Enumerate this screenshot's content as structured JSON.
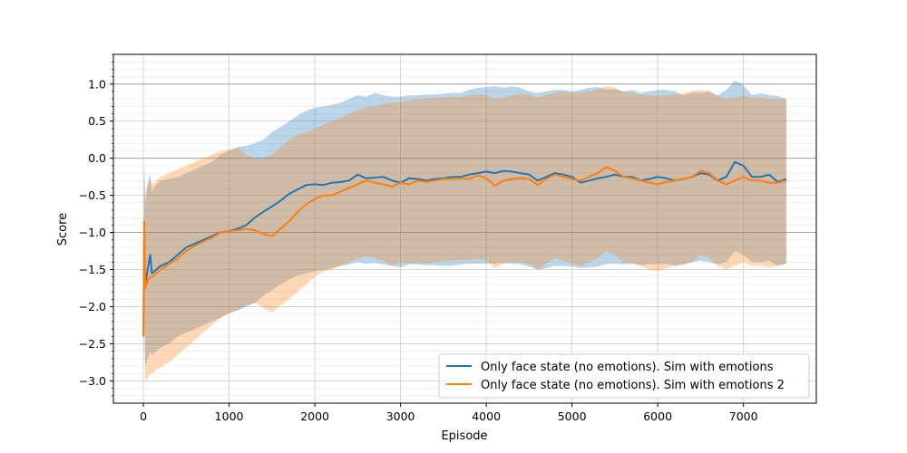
{
  "chart_data": {
    "type": "line",
    "title": "",
    "xlabel": "Episode",
    "ylabel": "Score",
    "xlim": [
      -350,
      7850
    ],
    "ylim": [
      -3.3,
      1.4
    ],
    "xticks": [
      0,
      1000,
      2000,
      3000,
      4000,
      5000,
      6000,
      7000
    ],
    "xtick_labels": [
      "0",
      "1000",
      "2000",
      "3000",
      "4000",
      "5000",
      "6000",
      "7000"
    ],
    "yticks": [
      -3.0,
      -2.5,
      -2.0,
      -1.5,
      -1.0,
      -0.5,
      0.0,
      0.5,
      1.0
    ],
    "ytick_labels": [
      "−3.0",
      "−2.5",
      "−2.0",
      "−1.5",
      "−1.0",
      "−0.5",
      "0.0",
      "0.5",
      "1.0"
    ],
    "grid": {
      "major": true,
      "minor_y_step": 0.1,
      "reference_lines_y": [
        -1.0,
        0.0,
        1.0
      ]
    },
    "legend_position": "lower-right",
    "x": [
      0,
      10,
      20,
      50,
      80,
      100,
      150,
      200,
      300,
      400,
      500,
      600,
      700,
      800,
      900,
      1000,
      1100,
      1200,
      1300,
      1400,
      1500,
      1600,
      1700,
      1800,
      1900,
      2000,
      2100,
      2200,
      2300,
      2400,
      2500,
      2600,
      2700,
      2800,
      2900,
      3000,
      3100,
      3200,
      3300,
      3400,
      3500,
      3600,
      3700,
      3800,
      3900,
      4000,
      4100,
      4200,
      4300,
      4400,
      4500,
      4600,
      4700,
      4800,
      4900,
      5000,
      5100,
      5200,
      5300,
      5400,
      5500,
      5600,
      5700,
      5800,
      5900,
      6000,
      6100,
      6200,
      6300,
      6400,
      6500,
      6600,
      6700,
      6800,
      6900,
      7000,
      7100,
      7200,
      7300,
      7400,
      7500
    ],
    "series": [
      {
        "name": "Only face state (no emotions). Sim with emotions",
        "color": "#1f77b4",
        "mean": [
          -2.4,
          -1.0,
          -1.7,
          -1.5,
          -1.3,
          -1.55,
          -1.5,
          -1.45,
          -1.4,
          -1.3,
          -1.2,
          -1.15,
          -1.1,
          -1.05,
          -1.0,
          -0.98,
          -0.95,
          -0.9,
          -0.8,
          -0.72,
          -0.65,
          -0.57,
          -0.48,
          -0.42,
          -0.36,
          -0.35,
          -0.36,
          -0.33,
          -0.32,
          -0.3,
          -0.22,
          -0.27,
          -0.26,
          -0.25,
          -0.3,
          -0.33,
          -0.27,
          -0.28,
          -0.3,
          -0.28,
          -0.27,
          -0.25,
          -0.25,
          -0.22,
          -0.2,
          -0.18,
          -0.2,
          -0.17,
          -0.18,
          -0.2,
          -0.22,
          -0.3,
          -0.25,
          -0.2,
          -0.22,
          -0.25,
          -0.33,
          -0.3,
          -0.27,
          -0.25,
          -0.22,
          -0.25,
          -0.25,
          -0.3,
          -0.28,
          -0.25,
          -0.27,
          -0.3,
          -0.28,
          -0.25,
          -0.2,
          -0.22,
          -0.3,
          -0.25,
          -0.05,
          -0.1,
          -0.25,
          -0.25,
          -0.22,
          -0.32,
          -0.28
        ],
        "upper": [
          -1.9,
          -0.1,
          -0.6,
          -0.35,
          -0.2,
          -0.45,
          -0.35,
          -0.3,
          -0.28,
          -0.25,
          -0.2,
          -0.15,
          -0.1,
          -0.05,
          0.05,
          0.1,
          0.15,
          0.17,
          0.2,
          0.25,
          0.35,
          0.42,
          0.5,
          0.58,
          0.64,
          0.68,
          0.7,
          0.72,
          0.75,
          0.8,
          0.85,
          0.83,
          0.88,
          0.85,
          0.83,
          0.83,
          0.85,
          0.85,
          0.86,
          0.86,
          0.87,
          0.88,
          0.88,
          0.92,
          0.95,
          0.96,
          0.97,
          0.95,
          0.97,
          0.95,
          0.9,
          0.88,
          0.9,
          0.92,
          0.92,
          0.9,
          0.92,
          0.95,
          0.96,
          0.93,
          0.93,
          0.9,
          0.92,
          0.88,
          0.9,
          0.92,
          0.92,
          0.9,
          0.85,
          0.88,
          0.88,
          0.9,
          0.85,
          0.92,
          1.05,
          0.98,
          0.85,
          0.88,
          0.85,
          0.84,
          0.8
        ],
        "lower": [
          -2.9,
          -1.9,
          -2.8,
          -2.7,
          -2.6,
          -2.65,
          -2.6,
          -2.55,
          -2.5,
          -2.4,
          -2.35,
          -2.3,
          -2.25,
          -2.2,
          -2.15,
          -2.08,
          -2.05,
          -2.0,
          -1.95,
          -1.85,
          -1.78,
          -1.7,
          -1.63,
          -1.58,
          -1.55,
          -1.52,
          -1.5,
          -1.48,
          -1.45,
          -1.43,
          -1.4,
          -1.42,
          -1.41,
          -1.43,
          -1.45,
          -1.47,
          -1.43,
          -1.43,
          -1.44,
          -1.44,
          -1.45,
          -1.45,
          -1.43,
          -1.42,
          -1.42,
          -1.42,
          -1.42,
          -1.41,
          -1.42,
          -1.43,
          -1.46,
          -1.5,
          -1.48,
          -1.45,
          -1.45,
          -1.46,
          -1.48,
          -1.47,
          -1.46,
          -1.43,
          -1.42,
          -1.43,
          -1.42,
          -1.44,
          -1.43,
          -1.43,
          -1.42,
          -1.45,
          -1.43,
          -1.4,
          -1.38,
          -1.4,
          -1.43,
          -1.4,
          -1.25,
          -1.3,
          -1.4,
          -1.4,
          -1.38,
          -1.45,
          -1.42
        ]
      },
      {
        "name": "Only face state (no emotions). Sim with emotions 2",
        "color": "#ff7f0e",
        "mean": [
          -2.4,
          -0.85,
          -1.75,
          -1.65,
          -1.6,
          -1.6,
          -1.55,
          -1.5,
          -1.42,
          -1.35,
          -1.25,
          -1.18,
          -1.12,
          -1.07,
          -1.0,
          -0.98,
          -0.97,
          -0.95,
          -0.97,
          -1.02,
          -1.05,
          -0.95,
          -0.85,
          -0.72,
          -0.62,
          -0.55,
          -0.5,
          -0.5,
          -0.45,
          -0.4,
          -0.35,
          -0.3,
          -0.33,
          -0.35,
          -0.38,
          -0.33,
          -0.35,
          -0.3,
          -0.32,
          -0.3,
          -0.28,
          -0.28,
          -0.27,
          -0.28,
          -0.23,
          -0.27,
          -0.37,
          -0.3,
          -0.28,
          -0.27,
          -0.28,
          -0.36,
          -0.28,
          -0.22,
          -0.25,
          -0.28,
          -0.3,
          -0.25,
          -0.2,
          -0.12,
          -0.17,
          -0.25,
          -0.27,
          -0.3,
          -0.33,
          -0.35,
          -0.32,
          -0.3,
          -0.28,
          -0.25,
          -0.17,
          -0.2,
          -0.3,
          -0.35,
          -0.3,
          -0.25,
          -0.3,
          -0.3,
          -0.33,
          -0.33,
          -0.3
        ],
        "upper": [
          -1.8,
          0.0,
          -0.5,
          -0.35,
          -0.3,
          -0.35,
          -0.3,
          -0.25,
          -0.2,
          -0.15,
          -0.1,
          -0.05,
          0.0,
          0.05,
          0.1,
          0.12,
          0.14,
          0.05,
          0.0,
          -0.02,
          0.05,
          0.15,
          0.25,
          0.32,
          0.35,
          0.4,
          0.45,
          0.5,
          0.55,
          0.6,
          0.65,
          0.68,
          0.7,
          0.73,
          0.75,
          0.76,
          0.78,
          0.8,
          0.8,
          0.82,
          0.82,
          0.83,
          0.83,
          0.85,
          0.86,
          0.85,
          0.8,
          0.82,
          0.85,
          0.87,
          0.86,
          0.82,
          0.85,
          0.88,
          0.9,
          0.88,
          0.88,
          0.9,
          0.92,
          0.97,
          0.95,
          0.9,
          0.88,
          0.86,
          0.85,
          0.84,
          0.85,
          0.86,
          0.88,
          0.9,
          0.92,
          0.9,
          0.84,
          0.8,
          0.82,
          0.85,
          0.82,
          0.82,
          0.8,
          0.8,
          0.8
        ],
        "lower": [
          -3.0,
          -1.7,
          -3.0,
          -2.95,
          -2.9,
          -2.9,
          -2.85,
          -2.82,
          -2.75,
          -2.65,
          -2.55,
          -2.45,
          -2.35,
          -2.25,
          -2.15,
          -2.1,
          -2.05,
          -1.98,
          -1.95,
          -2.02,
          -2.08,
          -1.98,
          -1.9,
          -1.8,
          -1.7,
          -1.6,
          -1.52,
          -1.5,
          -1.45,
          -1.4,
          -1.35,
          -1.32,
          -1.35,
          -1.38,
          -1.45,
          -1.4,
          -1.42,
          -1.4,
          -1.42,
          -1.4,
          -1.38,
          -1.38,
          -1.37,
          -1.38,
          -1.35,
          -1.38,
          -1.48,
          -1.42,
          -1.4,
          -1.4,
          -1.42,
          -1.5,
          -1.42,
          -1.35,
          -1.38,
          -1.42,
          -1.45,
          -1.4,
          -1.35,
          -1.25,
          -1.3,
          -1.4,
          -1.42,
          -1.45,
          -1.5,
          -1.52,
          -1.48,
          -1.45,
          -1.43,
          -1.4,
          -1.3,
          -1.35,
          -1.45,
          -1.5,
          -1.45,
          -1.4,
          -1.45,
          -1.45,
          -1.47,
          -1.45,
          -1.42
        ]
      }
    ]
  }
}
